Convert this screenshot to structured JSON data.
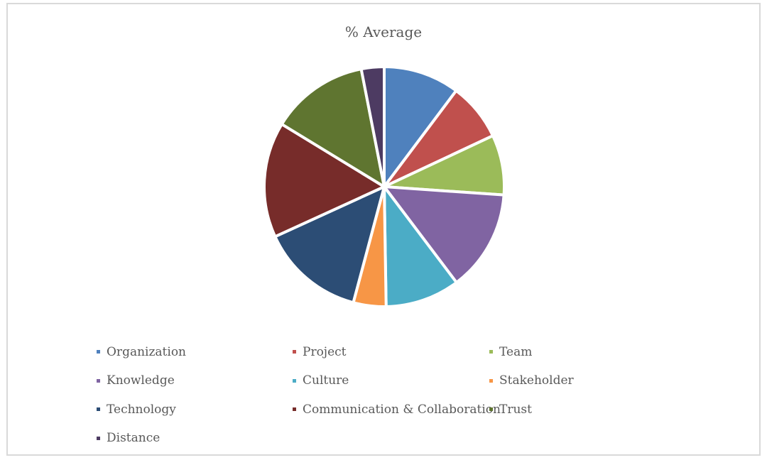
{
  "chart_data": {
    "type": "pie",
    "title": "% Average",
    "legend_position": "bottom",
    "categories": [
      "Organization",
      "Project",
      "Team",
      "Knowledge",
      "Culture",
      "Stakeholder",
      "Technology",
      "Communication & Collaboration",
      "Trust",
      "Distance"
    ],
    "values": [
      10.0,
      7.6,
      7.9,
      13.3,
      9.8,
      4.3,
      13.7,
      15.2,
      12.9,
      3.0
    ],
    "colors": [
      "#4F81BD",
      "#C0504D",
      "#9BBB59",
      "#8064A2",
      "#4BACC6",
      "#F79646",
      "#2C4D75",
      "#772C2A",
      "#5F7530",
      "#4D3B62"
    ]
  }
}
